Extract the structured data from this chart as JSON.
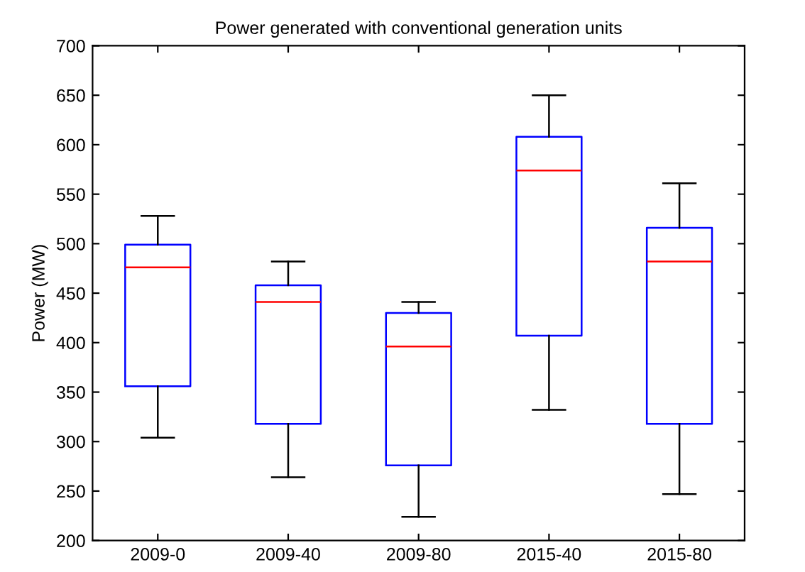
{
  "chart_data": {
    "type": "box",
    "title": "Power generated with conventional generation units",
    "ylabel": "Power (MW)",
    "categories": [
      "2009-0",
      "2009-40",
      "2009-80",
      "2015-40",
      "2015-80"
    ],
    "boxes": [
      {
        "low": 304,
        "q1": 356,
        "median": 476,
        "q3": 499,
        "high": 528
      },
      {
        "low": 264,
        "q1": 318,
        "median": 441,
        "q3": 458,
        "high": 482
      },
      {
        "low": 224,
        "q1": 276,
        "median": 396,
        "q3": 430,
        "high": 441
      },
      {
        "low": 332,
        "q1": 407,
        "median": 574,
        "q3": 608,
        "high": 650
      },
      {
        "low": 247,
        "q1": 318,
        "median": 482,
        "q3": 516,
        "high": 561
      }
    ],
    "color": "#0000ff",
    "ylim": [
      200,
      700
    ],
    "yticks": [
      200,
      250,
      300,
      350,
      400,
      450,
      500,
      550,
      600,
      650,
      700
    ],
    "grid": false
  }
}
